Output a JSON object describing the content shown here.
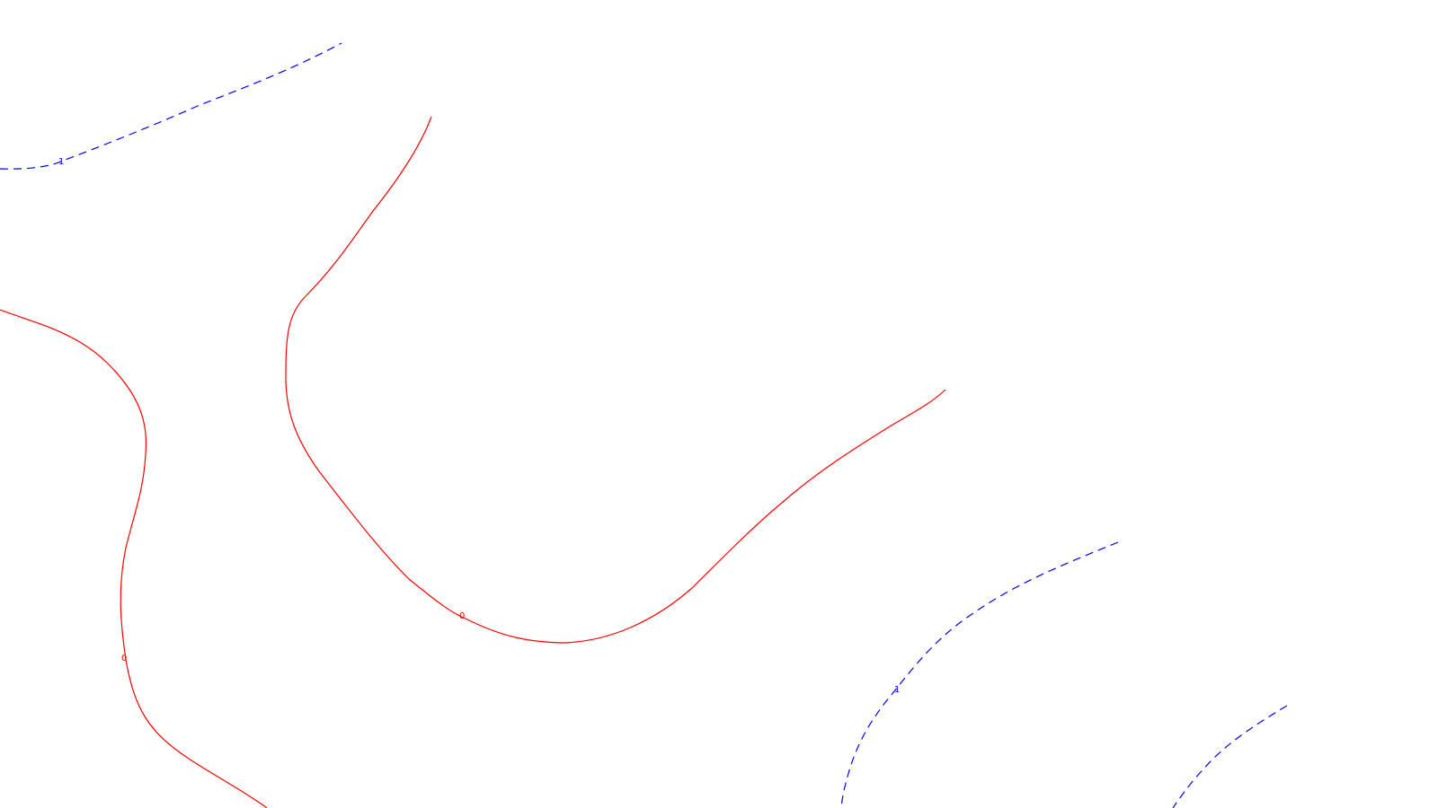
{
  "map": {
    "background_color": "#ffffff",
    "zero_line_color": "#ff0000",
    "one_line_color": "#0000ff",
    "contours": [
      {
        "level": "0",
        "label": "0",
        "style": "solid"
      },
      {
        "level": "0",
        "label": "0",
        "style": "solid"
      },
      {
        "level": "1",
        "label": "1",
        "style": "dashed"
      },
      {
        "level": "1",
        "label": "1",
        "style": "dashed"
      },
      {
        "level": "1",
        "label": "",
        "style": "dashed"
      }
    ]
  }
}
